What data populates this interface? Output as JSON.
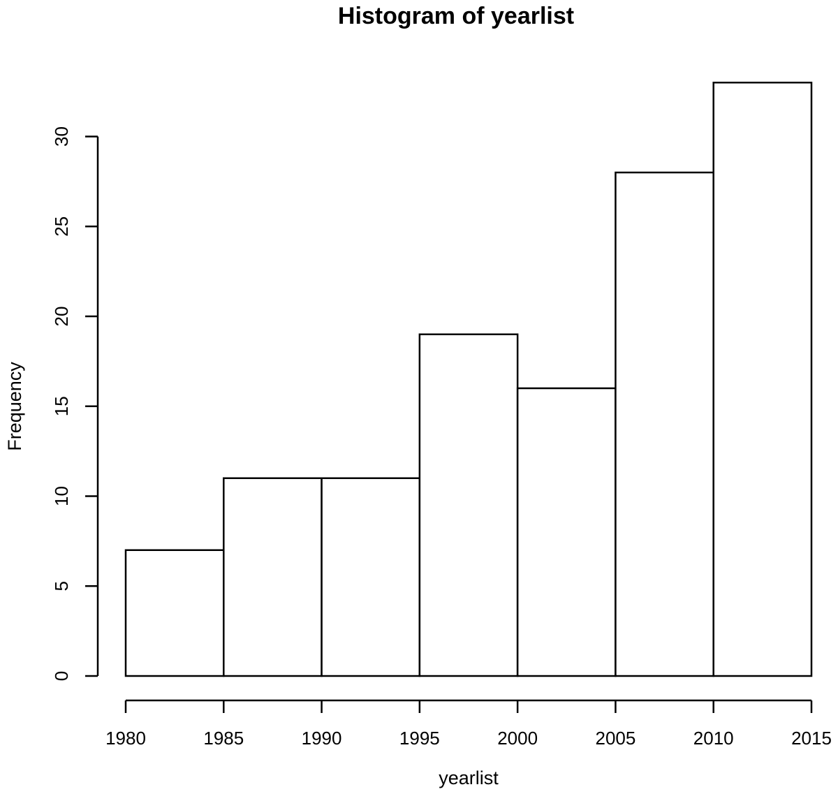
{
  "chart_data": {
    "type": "bar",
    "title": "Histogram of yearlist",
    "xlabel": "yearlist",
    "ylabel": "Frequency",
    "bins": [
      {
        "start": 1980,
        "end": 1985,
        "count": 7
      },
      {
        "start": 1985,
        "end": 1990,
        "count": 11
      },
      {
        "start": 1990,
        "end": 1995,
        "count": 11
      },
      {
        "start": 1995,
        "end": 2000,
        "count": 19
      },
      {
        "start": 2000,
        "end": 2005,
        "count": 16
      },
      {
        "start": 2005,
        "end": 2010,
        "count": 28
      },
      {
        "start": 2010,
        "end": 2015,
        "count": 33
      }
    ],
    "xlim": [
      1980,
      2015
    ],
    "ylim": [
      0,
      33
    ],
    "x_ticks": [
      1980,
      1985,
      1990,
      1995,
      2000,
      2005,
      2010,
      2015
    ],
    "x_tick_labels": [
      "1980",
      "1985",
      "1990",
      "1995",
      "2000",
      "2005",
      "2010",
      "2015"
    ],
    "y_ticks": [
      0,
      5,
      10,
      15,
      20,
      25,
      30
    ],
    "y_tick_labels": [
      "0",
      "5",
      "10",
      "15",
      "20",
      "25",
      "30"
    ],
    "grid": false,
    "legend": "none",
    "colors": {
      "bar_fill": "#ffffff",
      "bar_stroke": "#000000",
      "axis": "#000000",
      "background": "#ffffff"
    }
  }
}
